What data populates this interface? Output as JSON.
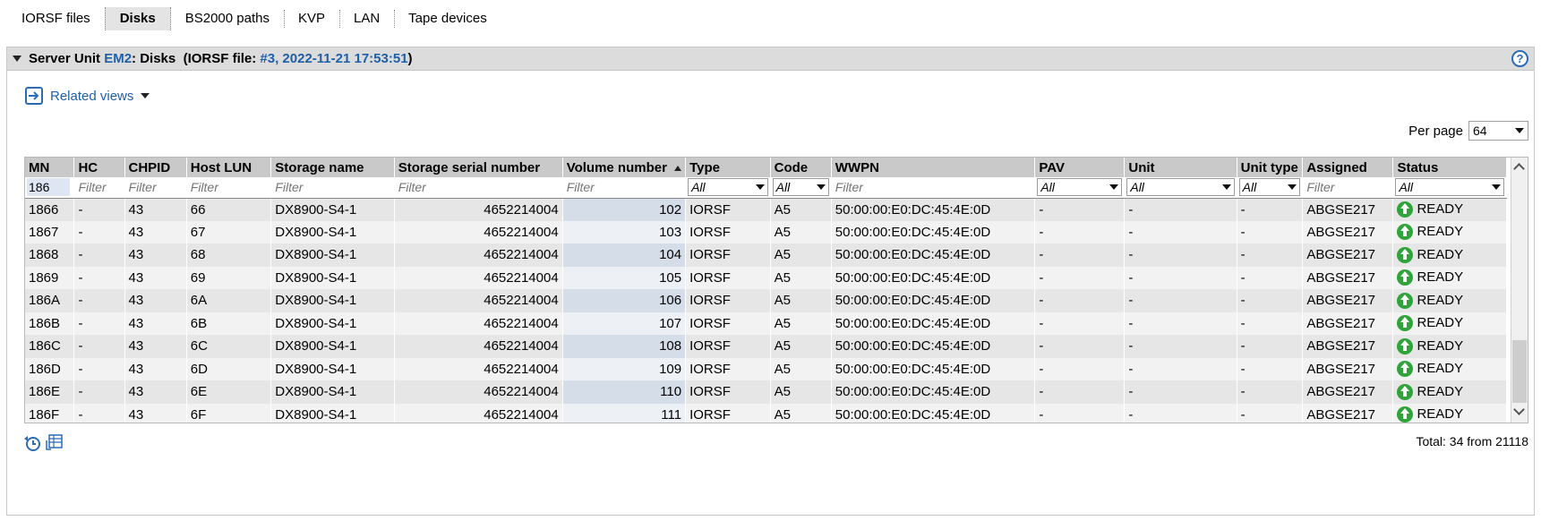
{
  "tabs": [
    {
      "label": "IORSF files",
      "active": false
    },
    {
      "label": "Disks",
      "active": true
    },
    {
      "label": "BS2000 paths",
      "active": false
    },
    {
      "label": "KVP",
      "active": false
    },
    {
      "label": "LAN",
      "active": false
    },
    {
      "label": "Tape devices",
      "active": false
    }
  ],
  "panel": {
    "title_prefix": "Server Unit ",
    "unit": "EM2",
    "title_mid": ": Disks  (IORSF file: ",
    "iorsf_link": "#3, 2022-11-21 17:53:51",
    "title_suffix": ")",
    "help": "?"
  },
  "related_views": "Related views",
  "per_page": {
    "label": "Per page",
    "value": "64"
  },
  "table": {
    "columns": [
      "MN",
      "HC",
      "CHPID",
      "Host LUN",
      "Storage name",
      "Storage serial number",
      "Volume number",
      "Type",
      "Code",
      "WWPN",
      "PAV",
      "Unit",
      "Unit type",
      "Assigned",
      "Status"
    ],
    "filters": [
      "186",
      "Filter",
      "Filter",
      "Filter",
      "Filter",
      "Filter",
      "Filter",
      "All",
      "All",
      "Filter",
      "All",
      "All",
      "All",
      "Filter",
      "All"
    ],
    "rows": [
      [
        "1866",
        "-",
        "43",
        "66",
        "DX8900-S4-1",
        "4652214004",
        "102",
        "IORSF",
        "A5",
        "50:00:00:E0:DC:45:4E:0D",
        "-",
        "-",
        "-",
        "ABGSE217",
        "READY"
      ],
      [
        "1867",
        "-",
        "43",
        "67",
        "DX8900-S4-1",
        "4652214004",
        "103",
        "IORSF",
        "A5",
        "50:00:00:E0:DC:45:4E:0D",
        "-",
        "-",
        "-",
        "ABGSE217",
        "READY"
      ],
      [
        "1868",
        "-",
        "43",
        "68",
        "DX8900-S4-1",
        "4652214004",
        "104",
        "IORSF",
        "A5",
        "50:00:00:E0:DC:45:4E:0D",
        "-",
        "-",
        "-",
        "ABGSE217",
        "READY"
      ],
      [
        "1869",
        "-",
        "43",
        "69",
        "DX8900-S4-1",
        "4652214004",
        "105",
        "IORSF",
        "A5",
        "50:00:00:E0:DC:45:4E:0D",
        "-",
        "-",
        "-",
        "ABGSE217",
        "READY"
      ],
      [
        "186A",
        "-",
        "43",
        "6A",
        "DX8900-S4-1",
        "4652214004",
        "106",
        "IORSF",
        "A5",
        "50:00:00:E0:DC:45:4E:0D",
        "-",
        "-",
        "-",
        "ABGSE217",
        "READY"
      ],
      [
        "186B",
        "-",
        "43",
        "6B",
        "DX8900-S4-1",
        "4652214004",
        "107",
        "IORSF",
        "A5",
        "50:00:00:E0:DC:45:4E:0D",
        "-",
        "-",
        "-",
        "ABGSE217",
        "READY"
      ],
      [
        "186C",
        "-",
        "43",
        "6C",
        "DX8900-S4-1",
        "4652214004",
        "108",
        "IORSF",
        "A5",
        "50:00:00:E0:DC:45:4E:0D",
        "-",
        "-",
        "-",
        "ABGSE217",
        "READY"
      ],
      [
        "186D",
        "-",
        "43",
        "6D",
        "DX8900-S4-1",
        "4652214004",
        "109",
        "IORSF",
        "A5",
        "50:00:00:E0:DC:45:4E:0D",
        "-",
        "-",
        "-",
        "ABGSE217",
        "READY"
      ],
      [
        "186E",
        "-",
        "43",
        "6E",
        "DX8900-S4-1",
        "4652214004",
        "110",
        "IORSF",
        "A5",
        "50:00:00:E0:DC:45:4E:0D",
        "-",
        "-",
        "-",
        "ABGSE217",
        "READY"
      ],
      [
        "186F",
        "-",
        "43",
        "6F",
        "DX8900-S4-1",
        "4652214004",
        "111",
        "IORSF",
        "A5",
        "50:00:00:E0:DC:45:4E:0D",
        "-",
        "-",
        "-",
        "ABGSE217",
        "READY"
      ]
    ]
  },
  "icons": {
    "refresh": "refresh-clock-icon",
    "export": "export-table-icon",
    "status": "green-up-arrow-icon",
    "related": "related-views-icon"
  },
  "colors": {
    "link": "#1f5fa8",
    "header_bg": "#c9c9c9",
    "status_green": "#2ea43a"
  },
  "total": "Total: 34 from 21118"
}
